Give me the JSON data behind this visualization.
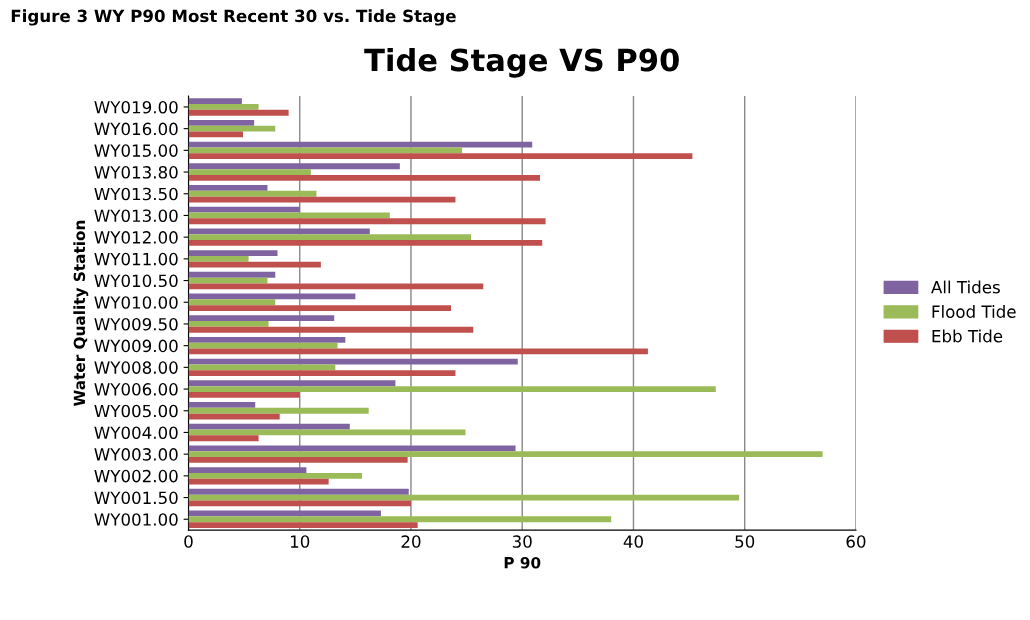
{
  "chart_data": {
    "type": "bar",
    "orientation": "horizontal",
    "title": "Tide Stage VS P90",
    "xlabel": "P 90",
    "ylabel": "Water Quality Station",
    "annotations": [
      "Figure 3 WY P90 Most Recent 30 vs. Tide Stage"
    ],
    "categories": [
      "WY019.00",
      "WY016.00",
      "WY015.00",
      "WY013.80",
      "WY013.50",
      "WY013.00",
      "WY012.00",
      "WY011.00",
      "WY010.50",
      "WY010.00",
      "WY009.50",
      "WY009.00",
      "WY008.00",
      "WY006.00",
      "WY005.00",
      "WY004.00",
      "WY003.00",
      "WY002.00",
      "WY001.50",
      "WY001.00"
    ],
    "series": [
      {
        "name": "All Tides",
        "color": "#8064a2",
        "values": [
          4.8,
          5.9,
          30.9,
          19.0,
          7.1,
          10.0,
          16.3,
          8.0,
          7.8,
          15.0,
          13.1,
          14.1,
          29.6,
          18.6,
          6.0,
          14.5,
          29.4,
          10.6,
          19.8,
          17.3
        ]
      },
      {
        "name": "Flood Tide",
        "color": "#9bbb59",
        "values": [
          6.3,
          7.8,
          24.6,
          11.0,
          11.5,
          18.1,
          25.4,
          5.4,
          7.1,
          7.8,
          7.2,
          13.4,
          13.2,
          47.4,
          16.2,
          24.9,
          57.0,
          15.6,
          49.5,
          38.0
        ]
      },
      {
        "name": "Ebb Tide",
        "color": "#c0504d",
        "values": [
          9.0,
          4.9,
          45.3,
          31.6,
          24.0,
          32.1,
          31.8,
          11.9,
          26.5,
          23.6,
          25.6,
          41.3,
          24.0,
          10.0,
          8.2,
          6.3,
          19.7,
          12.6,
          20.0,
          20.6
        ]
      }
    ],
    "xlim": [
      0,
      60
    ],
    "xticks": [
      0,
      10,
      20,
      30,
      40,
      50,
      60
    ],
    "grid": "x",
    "legend": "right"
  }
}
